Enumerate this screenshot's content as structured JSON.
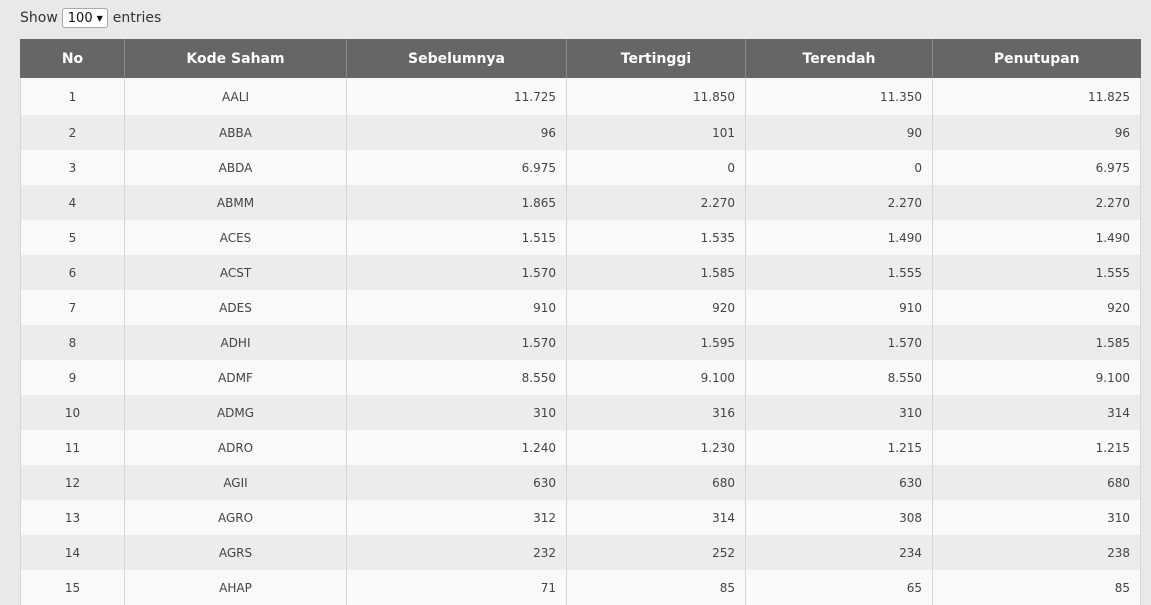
{
  "length_menu": {
    "prefix": "Show",
    "value": "100",
    "suffix": "entries"
  },
  "table": {
    "headers": [
      "No",
      "Kode Saham",
      "Sebelumnya",
      "Tertinggi",
      "Terendah",
      "Penutupan"
    ],
    "rows": [
      [
        "1",
        "AALI",
        "11.725",
        "11.850",
        "11.350",
        "11.825"
      ],
      [
        "2",
        "ABBA",
        "96",
        "101",
        "90",
        "96"
      ],
      [
        "3",
        "ABDA",
        "6.975",
        "0",
        "0",
        "6.975"
      ],
      [
        "4",
        "ABMM",
        "1.865",
        "2.270",
        "2.270",
        "2.270"
      ],
      [
        "5",
        "ACES",
        "1.515",
        "1.535",
        "1.490",
        "1.490"
      ],
      [
        "6",
        "ACST",
        "1.570",
        "1.585",
        "1.555",
        "1.555"
      ],
      [
        "7",
        "ADES",
        "910",
        "920",
        "910",
        "920"
      ],
      [
        "8",
        "ADHI",
        "1.570",
        "1.595",
        "1.570",
        "1.585"
      ],
      [
        "9",
        "ADMF",
        "8.550",
        "9.100",
        "8.550",
        "9.100"
      ],
      [
        "10",
        "ADMG",
        "310",
        "316",
        "310",
        "314"
      ],
      [
        "11",
        "ADRO",
        "1.240",
        "1.230",
        "1.215",
        "1.215"
      ],
      [
        "12",
        "AGII",
        "630",
        "680",
        "630",
        "680"
      ],
      [
        "13",
        "AGRO",
        "312",
        "314",
        "308",
        "310"
      ],
      [
        "14",
        "AGRS",
        "232",
        "252",
        "234",
        "238"
      ],
      [
        "15",
        "AHAP",
        "71",
        "85",
        "65",
        "85"
      ]
    ]
  }
}
